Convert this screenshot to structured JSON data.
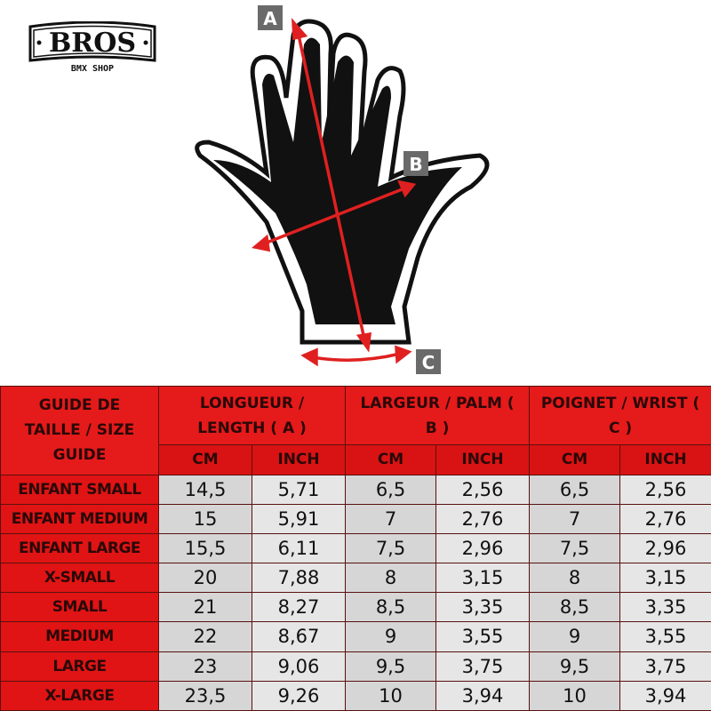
{
  "logo": {
    "brand": "BROS",
    "tagline": "BMX SHOP"
  },
  "diagram": {
    "labels": {
      "a": "A",
      "b": "B",
      "c": "C"
    },
    "colors": {
      "arrow": "#e02020",
      "label_box": "#6a6a6a",
      "glove": "#111111"
    }
  },
  "table": {
    "corner": "GUIDE DE TAILLE / SIZE GUIDE",
    "groups": [
      "LONGUEUR / LENGTH ( A )",
      "LARGEUR / PALM ( B )",
      "POIGNET / WRIST ( C )"
    ],
    "units": [
      "CM",
      "INCH",
      "CM",
      "INCH",
      "CM",
      "INCH"
    ],
    "rows": [
      {
        "size": "ENFANT SMALL",
        "values": [
          "14,5",
          "5,71",
          "6,5",
          "2,56",
          "6,5",
          "2,56"
        ]
      },
      {
        "size": "ENFANT MEDIUM",
        "values": [
          "15",
          "5,91",
          "7",
          "2,76",
          "7",
          "2,76"
        ]
      },
      {
        "size": "ENFANT LARGE",
        "values": [
          "15,5",
          "6,11",
          "7,5",
          "2,96",
          "7,5",
          "2,96"
        ]
      },
      {
        "size": "X-SMALL",
        "values": [
          "20",
          "7,88",
          "8",
          "3,15",
          "8",
          "3,15"
        ]
      },
      {
        "size": "SMALL",
        "values": [
          "21",
          "8,27",
          "8,5",
          "3,35",
          "8,5",
          "3,35"
        ]
      },
      {
        "size": "MEDIUM",
        "values": [
          "22",
          "8,67",
          "9",
          "3,55",
          "9",
          "3,55"
        ]
      },
      {
        "size": "LARGE",
        "values": [
          "23",
          "9,06",
          "9,5",
          "3,75",
          "9,5",
          "3,75"
        ]
      },
      {
        "size": "X-LARGE",
        "values": [
          "23,5",
          "9,26",
          "10",
          "3,94",
          "10",
          "3,94"
        ]
      }
    ],
    "colors": {
      "header": "#e31212",
      "cell": "#d6d6d6"
    }
  }
}
